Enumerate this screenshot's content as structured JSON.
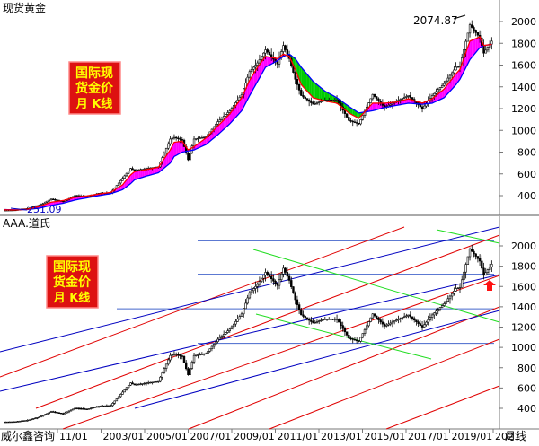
{
  "window": {
    "top_title": "现货黄金",
    "bottom_title": "AAA.道氏",
    "branding": "威尔鑫咨询",
    "footer_tag": "月线"
  },
  "badges": [
    {
      "lines": [
        "国际现",
        "货金价",
        "月  K线"
      ]
    },
    {
      "lines": [
        "国际现",
        "货金价",
        "月  K线"
      ]
    }
  ],
  "annotations": {
    "peak_label": "2074.87",
    "low_label": "251.09"
  },
  "colors": {
    "candle": "#000000",
    "ma_fast": "#ff0000",
    "ma_slow": "#0000ff",
    "fill_up": "#ff00ff",
    "fill_down": "#00cc00",
    "channel_red": "#e00000",
    "channel_blue": "#0000c0",
    "channel_green": "#22dd22",
    "horizontal": "#4466cc",
    "arrow": "#ff1111",
    "badge_bg": "#dd1111",
    "badge_text": "#ffff00",
    "divider": "#555555"
  },
  "chart_data": [
    {
      "type": "line",
      "title": "现货黄金",
      "subtitle": "",
      "xlabel": "",
      "ylabel": "",
      "x_ticks": [
        "11/01",
        "2003/01",
        "2005/01",
        "2007/01",
        "2009/01",
        "2011/01",
        "2013/01",
        "2015/01",
        "2017/01",
        "2019/01",
        "2021"
      ],
      "y_ticks": [
        400,
        600,
        800,
        1000,
        1200,
        1400,
        1600,
        1800,
        2000
      ],
      "ylim": [
        250,
        2100
      ],
      "grid": false,
      "series": [
        {
          "x": [
            "2001-01",
            "2001-07",
            "2002-01",
            "2002-07",
            "2003-01",
            "2003-07",
            "2004-01",
            "2004-07",
            "2005-01",
            "2005-07",
            "2006-01",
            "2006-05",
            "2006-07",
            "2007-01",
            "2007-07",
            "2008-01",
            "2008-03",
            "2008-07",
            "2008-10",
            "2009-01",
            "2009-07",
            "2010-01",
            "2010-07",
            "2011-01",
            "2011-05",
            "2011-09",
            "2012-01",
            "2012-07",
            "2012-10",
            "2013-01",
            "2013-04",
            "2013-07",
            "2014-01",
            "2014-07",
            "2015-01",
            "2015-07",
            "2015-12",
            "2016-07",
            "2017-01",
            "2017-07",
            "2018-01",
            "2018-08",
            "2019-01",
            "2019-07",
            "2020-01",
            "2020-03",
            "2020-08",
            "2021-01",
            "2021-03",
            "2021-07"
          ],
          "close": [
            265,
            268,
            282,
            314,
            368,
            346,
            402,
            391,
            422,
            428,
            560,
            650,
            630,
            650,
            665,
            920,
            935,
            910,
            730,
            920,
            940,
            1080,
            1180,
            1330,
            1540,
            1620,
            1740,
            1610,
            1780,
            1660,
            1470,
            1320,
            1240,
            1280,
            1280,
            1090,
            1060,
            1330,
            1210,
            1270,
            1320,
            1200,
            1320,
            1430,
            1580,
            1590,
            1970,
            1850,
            1710,
            1820
          ],
          "ma_fast": [
            270,
            268,
            275,
            300,
            340,
            355,
            385,
            398,
            415,
            430,
            500,
            590,
            620,
            640,
            660,
            820,
            890,
            900,
            820,
            850,
            930,
            1040,
            1150,
            1300,
            1460,
            1580,
            1680,
            1660,
            1700,
            1680,
            1560,
            1420,
            1300,
            1270,
            1250,
            1160,
            1110,
            1250,
            1250,
            1260,
            1290,
            1250,
            1290,
            1380,
            1520,
            1560,
            1820,
            1860,
            1780,
            1790
          ],
          "ma_slow": [
            272,
            270,
            272,
            285,
            310,
            330,
            360,
            380,
            400,
            418,
            455,
            510,
            545,
            580,
            610,
            700,
            760,
            800,
            810,
            820,
            870,
            960,
            1060,
            1180,
            1320,
            1450,
            1580,
            1640,
            1680,
            1700,
            1660,
            1580,
            1450,
            1360,
            1300,
            1220,
            1160,
            1180,
            1210,
            1230,
            1250,
            1240,
            1250,
            1300,
            1420,
            1470,
            1650,
            1760,
            1780,
            1790
          ]
        }
      ]
    },
    {
      "type": "line",
      "title": "AAA.道氏",
      "subtitle": "",
      "xlabel": "",
      "ylabel": "",
      "x_ticks": [
        "11/01",
        "2003/01",
        "2005/01",
        "2007/01",
        "2009/01",
        "2011/01",
        "2013/01",
        "2015/01",
        "2017/01",
        "2019/01",
        "2021"
      ],
      "y_ticks": [
        400,
        600,
        800,
        1000,
        1200,
        1400,
        1600,
        1800,
        2000
      ],
      "ylim": [
        250,
        2100
      ],
      "grid": false,
      "horizontal_lines": [
        2050,
        1720,
        1380,
        1040
      ],
      "series": [
        {
          "x": [
            "2001-01",
            "2001-07",
            "2002-01",
            "2002-07",
            "2003-01",
            "2003-07",
            "2004-01",
            "2004-07",
            "2005-01",
            "2005-07",
            "2006-01",
            "2006-05",
            "2006-07",
            "2007-01",
            "2007-07",
            "2008-01",
            "2008-03",
            "2008-07",
            "2008-10",
            "2009-01",
            "2009-07",
            "2010-01",
            "2010-07",
            "2011-01",
            "2011-05",
            "2011-09",
            "2012-01",
            "2012-07",
            "2012-10",
            "2013-01",
            "2013-04",
            "2013-07",
            "2014-01",
            "2014-07",
            "2015-01",
            "2015-07",
            "2015-12",
            "2016-07",
            "2017-01",
            "2017-07",
            "2018-01",
            "2018-08",
            "2019-01",
            "2019-07",
            "2020-01",
            "2020-03",
            "2020-08",
            "2021-01",
            "2021-03",
            "2021-07"
          ],
          "close": [
            265,
            268,
            282,
            314,
            368,
            346,
            402,
            391,
            422,
            428,
            560,
            650,
            630,
            650,
            665,
            920,
            935,
            910,
            730,
            920,
            940,
            1080,
            1180,
            1330,
            1540,
            1620,
            1740,
            1610,
            1780,
            1660,
            1470,
            1320,
            1240,
            1280,
            1280,
            1090,
            1060,
            1330,
            1210,
            1270,
            1320,
            1200,
            1320,
            1430,
            1580,
            1590,
            1970,
            1850,
            1710,
            1820
          ]
        }
      ]
    }
  ]
}
